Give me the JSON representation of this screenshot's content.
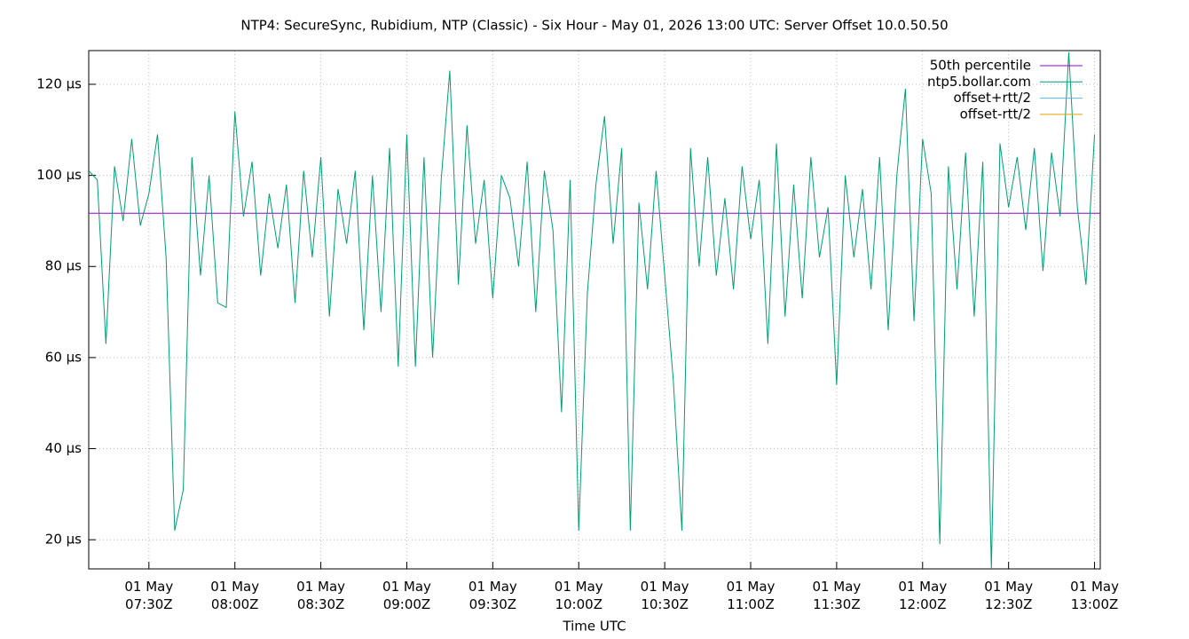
{
  "chart_data": {
    "type": "line",
    "title": "NTP4: SecureSync, Rubidium, NTP (Classic) - Six Hour - May 01, 2026 13:00 UTC: Server Offset 10.0.50.50",
    "xlabel": "Time UTC",
    "xlim": [
      "07:09",
      "13:02"
    ],
    "xticks": [
      {
        "value": "07:30",
        "label": "01 May\n07:30Z"
      },
      {
        "value": "08:00",
        "label": "01 May\n08:00Z"
      },
      {
        "value": "08:30",
        "label": "01 May\n08:30Z"
      },
      {
        "value": "09:00",
        "label": "01 May\n09:00Z"
      },
      {
        "value": "09:30",
        "label": "01 May\n09:30Z"
      },
      {
        "value": "10:00",
        "label": "01 May\n10:00Z"
      },
      {
        "value": "10:30",
        "label": "01 May\n10:30Z"
      },
      {
        "value": "11:00",
        "label": "01 May\n11:00Z"
      },
      {
        "value": "11:30",
        "label": "01 May\n11:30Z"
      },
      {
        "value": "12:00",
        "label": "01 May\n12:00Z"
      },
      {
        "value": "12:30",
        "label": "01 May\n12:30Z"
      },
      {
        "value": "13:00",
        "label": "01 May\n13:00Z"
      }
    ],
    "ylim": [
      13.6,
      127.4
    ],
    "yticks": [
      {
        "value": 20,
        "label": "20 µs"
      },
      {
        "value": 40,
        "label": "40 µs"
      },
      {
        "value": 60,
        "label": "60 µs"
      },
      {
        "value": 80,
        "label": "80 µs"
      },
      {
        "value": 100,
        "label": "100 µs"
      },
      {
        "value": 120,
        "label": "120 µs"
      }
    ],
    "grid": true,
    "legend": "upper right",
    "series": [
      {
        "name": "50th percentile",
        "color": "#9400d3",
        "x": [
          "07:09",
          "13:02"
        ],
        "values": [
          91.7,
          91.7
        ]
      },
      {
        "name": "ntp5.bollar.com",
        "color": "#009e73",
        "x": [
          "07:09",
          "07:12",
          "07:15",
          "07:18",
          "07:21",
          "07:24",
          "07:27",
          "07:30",
          "07:33",
          "07:36",
          "07:39",
          "07:42",
          "07:45",
          "07:48",
          "07:51",
          "07:54",
          "07:57",
          "08:00",
          "08:03",
          "08:06",
          "08:09",
          "08:12",
          "08:15",
          "08:18",
          "08:21",
          "08:24",
          "08:27",
          "08:30",
          "08:33",
          "08:36",
          "08:39",
          "08:42",
          "08:45",
          "08:48",
          "08:51",
          "08:54",
          "08:57",
          "09:00",
          "09:03",
          "09:06",
          "09:09",
          "09:12",
          "09:15",
          "09:18",
          "09:21",
          "09:24",
          "09:27",
          "09:30",
          "09:33",
          "09:36",
          "09:39",
          "09:42",
          "09:45",
          "09:48",
          "09:51",
          "09:54",
          "09:57",
          "10:00",
          "10:03",
          "10:06",
          "10:09",
          "10:12",
          "10:15",
          "10:18",
          "10:21",
          "10:24",
          "10:27",
          "10:30",
          "10:33",
          "10:36",
          "10:39",
          "10:42",
          "10:45",
          "10:48",
          "10:51",
          "10:54",
          "10:57",
          "11:00",
          "11:03",
          "11:06",
          "11:09",
          "11:12",
          "11:15",
          "11:18",
          "11:21",
          "11:24",
          "11:27",
          "11:30",
          "11:33",
          "11:36",
          "11:39",
          "11:42",
          "11:45",
          "11:48",
          "11:51",
          "11:54",
          "11:57",
          "12:00",
          "12:03",
          "12:06",
          "12:09",
          "12:12",
          "12:15",
          "12:18",
          "12:21",
          "12:24",
          "12:27",
          "12:30",
          "12:33",
          "12:36",
          "12:39",
          "12:42",
          "12:45",
          "12:48",
          "12:51",
          "12:54",
          "12:57",
          "13:00"
        ],
        "values": [
          101,
          99,
          63,
          102,
          90,
          108,
          89,
          96,
          109,
          82,
          22,
          31,
          104,
          78,
          100,
          72,
          71,
          114,
          91,
          103,
          78,
          96,
          84,
          98,
          72,
          101,
          82,
          104,
          69,
          97,
          85,
          101,
          66,
          100,
          70,
          106,
          58,
          109,
          58,
          104,
          60,
          99,
          123,
          76,
          111,
          85,
          99,
          73,
          100,
          95,
          80,
          103,
          70,
          101,
          88,
          48,
          99,
          22,
          74,
          98,
          113,
          85,
          106,
          22,
          94,
          75,
          101,
          78,
          55,
          22,
          106,
          80,
          104,
          78,
          95,
          75,
          102,
          86,
          99,
          63,
          107,
          69,
          98,
          73,
          104,
          82,
          93,
          54,
          100,
          82,
          97,
          75,
          104,
          66,
          100,
          119,
          68,
          108,
          96,
          19,
          102,
          75,
          105,
          69,
          103,
          13.5,
          107,
          93,
          104,
          88,
          106,
          79,
          105,
          91,
          127,
          93,
          76,
          109
        ]
      },
      {
        "name": "offset+rtt/2",
        "color": "#56b4e9",
        "x": [],
        "values": []
      },
      {
        "name": "offset-rtt/2",
        "color": "#e69f00",
        "x": [],
        "values": []
      }
    ]
  }
}
